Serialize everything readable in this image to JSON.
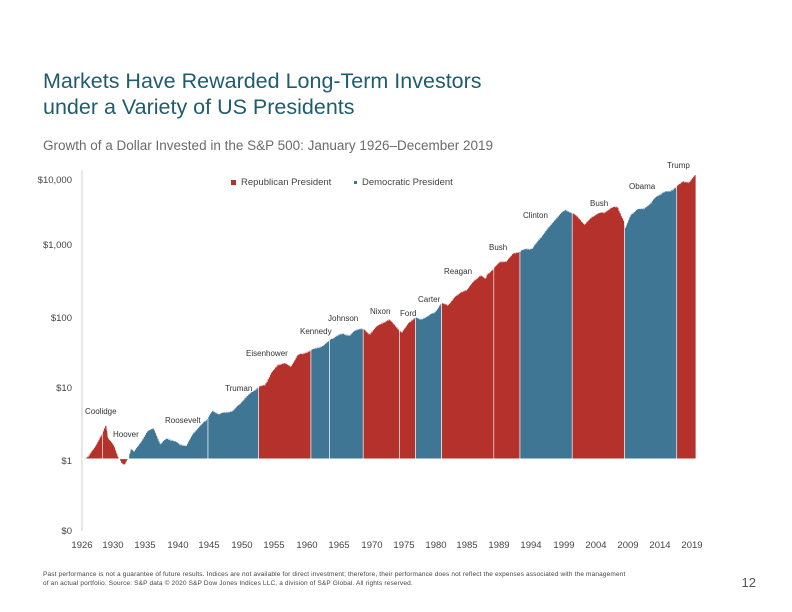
{
  "header": {
    "title_line1": "Markets Have Rewarded Long-Term Investors",
    "title_line2": "under a Variety of US Presidents",
    "subtitle": "Growth of a Dollar Invested in the S&P 500: January 1926–December 2019"
  },
  "legend": {
    "republican": "Republican President",
    "democratic": "Democratic President"
  },
  "colors": {
    "republican": "#b5312c",
    "democratic": "#3f7694",
    "title": "#1f5c6e"
  },
  "chart_data": {
    "type": "area",
    "scale": "log",
    "ylim": [
      0.1,
      10000
    ],
    "ytick_labels": [
      {
        "value": 10000,
        "label": "$10,000"
      },
      {
        "value": 1000,
        "label": "$1,000"
      },
      {
        "value": 100,
        "label": "$100"
      },
      {
        "value": 10,
        "label": "$10"
      },
      {
        "value": 1,
        "label": "$1"
      },
      {
        "value": 0.1,
        "label": "$0"
      }
    ],
    "xtick_labels": [
      "1926",
      "1930",
      "1935",
      "1940",
      "1945",
      "1950",
      "1955",
      "1960",
      "1965",
      "1970",
      "1975",
      "1980",
      "1985",
      "1989",
      "1994",
      "1999",
      "2004",
      "2009",
      "2014",
      "2019"
    ],
    "growth_points": [
      {
        "year": 1926.0,
        "value": 1.0
      },
      {
        "year": 1927.0,
        "value": 1.12
      },
      {
        "year": 1928.0,
        "value": 1.54
      },
      {
        "year": 1929.0,
        "value": 2.2
      },
      {
        "year": 1929.7,
        "value": 3.1
      },
      {
        "year": 1930.0,
        "value": 2.0
      },
      {
        "year": 1931.0,
        "value": 1.5
      },
      {
        "year": 1932.0,
        "value": 0.85
      },
      {
        "year": 1932.5,
        "value": 0.8
      },
      {
        "year": 1933.0,
        "value": 0.95
      },
      {
        "year": 1933.5,
        "value": 1.45
      },
      {
        "year": 1934.0,
        "value": 1.3
      },
      {
        "year": 1935.0,
        "value": 1.75
      },
      {
        "year": 1936.0,
        "value": 2.45
      },
      {
        "year": 1937.0,
        "value": 2.7
      },
      {
        "year": 1938.0,
        "value": 1.65
      },
      {
        "year": 1939.0,
        "value": 2.0
      },
      {
        "year": 1940.0,
        "value": 1.85
      },
      {
        "year": 1941.0,
        "value": 1.65
      },
      {
        "year": 1942.0,
        "value": 1.55
      },
      {
        "year": 1943.0,
        "value": 2.3
      },
      {
        "year": 1944.0,
        "value": 2.9
      },
      {
        "year": 1945.0,
        "value": 3.5
      },
      {
        "year": 1946.0,
        "value": 4.8
      },
      {
        "year": 1947.0,
        "value": 4.3
      },
      {
        "year": 1948.0,
        "value": 4.5
      },
      {
        "year": 1949.0,
        "value": 4.7
      },
      {
        "year": 1950.0,
        "value": 5.7
      },
      {
        "year": 1951.0,
        "value": 7.3
      },
      {
        "year": 1952.0,
        "value": 8.7
      },
      {
        "year": 1953.0,
        "value": 10.2
      },
      {
        "year": 1954.0,
        "value": 11.0
      },
      {
        "year": 1955.0,
        "value": 16.0
      },
      {
        "year": 1956.0,
        "value": 21.0
      },
      {
        "year": 1957.0,
        "value": 21.5
      },
      {
        "year": 1958.0,
        "value": 19.5
      },
      {
        "year": 1959.0,
        "value": 28.0
      },
      {
        "year": 1960.0,
        "value": 30.0
      },
      {
        "year": 1961.0,
        "value": 33.0
      },
      {
        "year": 1962.0,
        "value": 36.0
      },
      {
        "year": 1963.0,
        "value": 38.0
      },
      {
        "year": 1964.0,
        "value": 46.0
      },
      {
        "year": 1965.0,
        "value": 53.0
      },
      {
        "year": 1966.0,
        "value": 56.0
      },
      {
        "year": 1967.0,
        "value": 53.0
      },
      {
        "year": 1968.0,
        "value": 63.0
      },
      {
        "year": 1969.0,
        "value": 66.0
      },
      {
        "year": 1970.0,
        "value": 55.0
      },
      {
        "year": 1971.0,
        "value": 68.0
      },
      {
        "year": 1972.0,
        "value": 78.0
      },
      {
        "year": 1973.0,
        "value": 88.0
      },
      {
        "year": 1974.0,
        "value": 72.0
      },
      {
        "year": 1975.0,
        "value": 58.0
      },
      {
        "year": 1976.0,
        "value": 80.0
      },
      {
        "year": 1977.0,
        "value": 92.0
      },
      {
        "year": 1978.0,
        "value": 88.0
      },
      {
        "year": 1979.0,
        "value": 98.0
      },
      {
        "year": 1980.0,
        "value": 110.0
      },
      {
        "year": 1981.0,
        "value": 148.0
      },
      {
        "year": 1982.0,
        "value": 140.0
      },
      {
        "year": 1983.0,
        "value": 175.0
      },
      {
        "year": 1984.0,
        "value": 210.0
      },
      {
        "year": 1985.0,
        "value": 225.0
      },
      {
        "year": 1986.0,
        "value": 300.0
      },
      {
        "year": 1987.0,
        "value": 360.0
      },
      {
        "year": 1987.8,
        "value": 320.0
      },
      {
        "year": 1988.0,
        "value": 375.0
      },
      {
        "year": 1989.0,
        "value": 440.0
      },
      {
        "year": 1990.0,
        "value": 565.0
      },
      {
        "year": 1991.0,
        "value": 550.0
      },
      {
        "year": 1992.0,
        "value": 720.0
      },
      {
        "year": 1993.0,
        "value": 760.0
      },
      {
        "year": 1994.0,
        "value": 840.0
      },
      {
        "year": 1995.0,
        "value": 850.0
      },
      {
        "year": 1996.0,
        "value": 1150.0
      },
      {
        "year": 1997.0,
        "value": 1450.0
      },
      {
        "year": 1998.0,
        "value": 1900.0
      },
      {
        "year": 1999.0,
        "value": 2400.0
      },
      {
        "year": 2000.0,
        "value": 2900.0
      },
      {
        "year": 2001.0,
        "value": 2650.0
      },
      {
        "year": 2002.0,
        "value": 2300.0
      },
      {
        "year": 2003.0,
        "value": 1800.0
      },
      {
        "year": 2004.0,
        "value": 2300.0
      },
      {
        "year": 2005.0,
        "value": 2550.0
      },
      {
        "year": 2006.0,
        "value": 2650.0
      },
      {
        "year": 2007.0,
        "value": 3100.0
      },
      {
        "year": 2008.0,
        "value": 3200.0
      },
      {
        "year": 2009.0,
        "value": 2000.0
      },
      {
        "year": 2009.2,
        "value": 1600.0
      },
      {
        "year": 2010.0,
        "value": 2500.0
      },
      {
        "year": 2011.0,
        "value": 2900.0
      },
      {
        "year": 2012.0,
        "value": 3000.0
      },
      {
        "year": 2013.0,
        "value": 3500.0
      },
      {
        "year": 2014.0,
        "value": 4500.0
      },
      {
        "year": 2015.0,
        "value": 5100.0
      },
      {
        "year": 2016.0,
        "value": 5300.0
      },
      {
        "year": 2017.0,
        "value": 6000.0
      },
      {
        "year": 2018.0,
        "value": 7200.0
      },
      {
        "year": 2019.0,
        "value": 6900.0
      },
      {
        "year": 2019.99,
        "value": 9000.0
      }
    ],
    "series": [
      {
        "name": "Coolidge",
        "party": "Republican",
        "start": 1926.0,
        "end": 1929.17
      },
      {
        "name": "Hoover",
        "party": "Republican",
        "start": 1929.17,
        "end": 1933.17
      },
      {
        "name": "Roosevelt",
        "party": "Democratic",
        "start": 1933.17,
        "end": 1945.29
      },
      {
        "name": "Truman",
        "party": "Democratic",
        "start": 1945.29,
        "end": 1953.05
      },
      {
        "name": "Eisenhower",
        "party": "Republican",
        "start": 1953.05,
        "end": 1961.05
      },
      {
        "name": "Kennedy",
        "party": "Democratic",
        "start": 1961.05,
        "end": 1963.89
      },
      {
        "name": "Johnson",
        "party": "Democratic",
        "start": 1963.89,
        "end": 1969.05
      },
      {
        "name": "Nixon",
        "party": "Republican",
        "start": 1969.05,
        "end": 1974.6
      },
      {
        "name": "Ford",
        "party": "Republican",
        "start": 1974.6,
        "end": 1977.05
      },
      {
        "name": "Carter",
        "party": "Democratic",
        "start": 1977.05,
        "end": 1981.05
      },
      {
        "name": "Reagan",
        "party": "Republican",
        "start": 1981.05,
        "end": 1989.05
      },
      {
        "name": "Bush",
        "party": "Republican",
        "start": 1989.05,
        "end": 1993.05
      },
      {
        "name": "Clinton",
        "party": "Democratic",
        "start": 1993.05,
        "end": 2001.05
      },
      {
        "name": "Bush",
        "party": "Republican",
        "start": 2001.05,
        "end": 2009.05
      },
      {
        "name": "Obama",
        "party": "Democratic",
        "start": 2009.05,
        "end": 2017.05
      },
      {
        "name": "Trump",
        "party": "Republican",
        "start": 2017.05,
        "end": 2019.99
      }
    ],
    "president_labels": [
      "Coolidge",
      "Hoover",
      "Roosevelt",
      "Truman",
      "Eisenhower",
      "Kennedy",
      "Johnson",
      "Nixon",
      "Ford",
      "Carter",
      "Reagan",
      "Bush",
      "Clinton",
      "Bush",
      "Obama",
      "Trump"
    ]
  },
  "footer": {
    "disclaimer_line1": "Past performance is not a guarantee of future results. Indices are not available for direct investment; therefore, their performance does not reflect the expenses associated with the management",
    "disclaimer_line2": "of an actual portfolio. Source: S&P data © 2020 S&P Dow Jones Indices LLC, a division of S&P Global. All rights reserved.",
    "page_number": "12"
  }
}
